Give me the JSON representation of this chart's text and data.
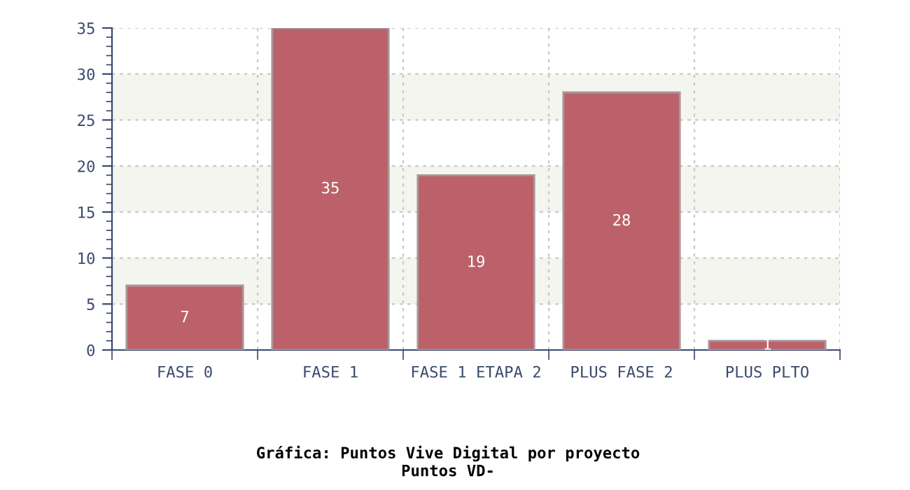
{
  "chart_data": {
    "type": "bar",
    "title": "Gráfica: Puntos Vive Digital por proyecto",
    "subtitle": "Puntos VD-",
    "categories": [
      "FASE 0",
      "FASE 1",
      "FASE 1 ETAPA 2",
      "PLUS FASE 2",
      "PLUS PLTO"
    ],
    "values": [
      7,
      35,
      19,
      28,
      1
    ],
    "color": "#bc616a",
    "data_labels": true,
    "ylim": [
      0,
      35
    ],
    "yticks": [
      0,
      5,
      10,
      15,
      20,
      25,
      30,
      35
    ],
    "grid": true,
    "bands": [
      {
        "axis": "y",
        "from": 5,
        "to": 10,
        "color": "#f5f5f0"
      },
      {
        "axis": "y",
        "from": 15,
        "to": 20,
        "color": "#f5f5f0"
      },
      {
        "axis": "y",
        "from": 25,
        "to": 30,
        "color": "#f5f5f0"
      }
    ]
  }
}
